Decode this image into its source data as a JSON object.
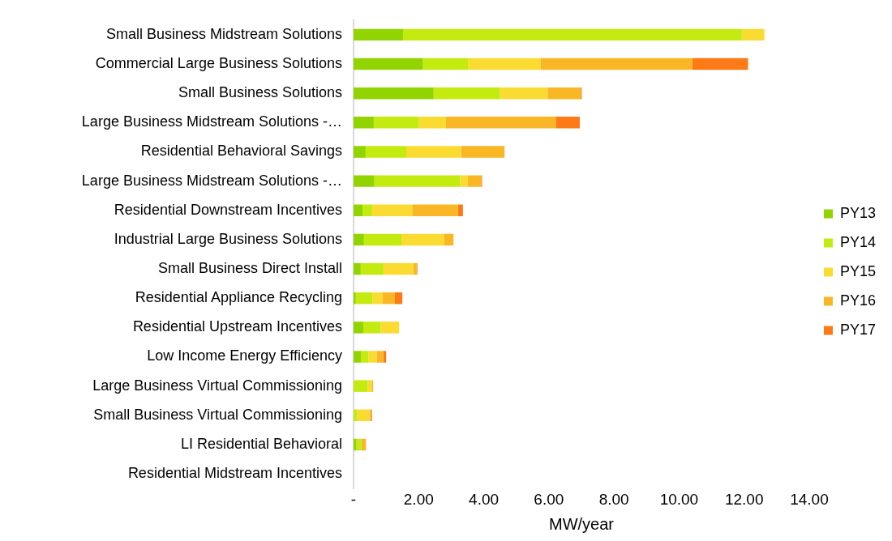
{
  "chart_data": {
    "type": "bar",
    "orientation": "horizontal",
    "stacked": true,
    "xlabel": "MW/year",
    "categories": [
      "Small Business Midstream Solutions",
      "Commercial Large Business Solutions",
      "Small Business Solutions",
      "Large Business Midstream Solutions -…",
      "Residential Behavioral Savings",
      "Large Business Midstream Solutions -…",
      "Residential Downstream Incentives",
      "Industrial Large Business Solutions",
      "Small Business Direct Install",
      "Residential Appliance Recycling",
      "Residential Upstream Incentives",
      "Low Income Energy Efficiency",
      "Large Business Virtual Commissioning",
      "Small Business Virtual Commissioning",
      "LI Residential Behavioral",
      "Residential Midstream Incentives"
    ],
    "series": [
      {
        "name": "PY13",
        "color": "#92d400",
        "values": [
          1.52,
          2.13,
          2.46,
          0.62,
          0.37,
          0.64,
          0.28,
          0.32,
          0.22,
          0.07,
          0.3,
          0.23,
          0,
          0,
          0.09,
          0
        ]
      },
      {
        "name": "PY14",
        "color": "#c4eb0f",
        "values": [
          10.41,
          1.4,
          2.04,
          1.39,
          1.25,
          2.63,
          0.29,
          1.15,
          0.7,
          0.51,
          0.53,
          0.23,
          0.43,
          0.11,
          0.15,
          0
        ]
      },
      {
        "name": "PY15",
        "color": "#fadb32",
        "values": [
          0.69,
          2.21,
          1.46,
          0.83,
          1.68,
          0.24,
          1.23,
          1.32,
          0.92,
          0.3,
          0.57,
          0.25,
          0.15,
          0.41,
          null,
          0
        ]
      },
      {
        "name": "PY16",
        "color": "#f9b726",
        "values": [
          0,
          4.66,
          1.02,
          3.37,
          1.34,
          0.41,
          1.41,
          0.28,
          0.1,
          0.39,
          0,
          0.2,
          0,
          0,
          0.14,
          0
        ]
      },
      {
        "name": "PY17",
        "color": "#fe7a17",
        "values": [
          0,
          1.72,
          0.03,
          0.74,
          0,
          0.03,
          0.15,
          0,
          0.02,
          0.23,
          0,
          0.09,
          0.02,
          0.04,
          0,
          0
        ]
      }
    ],
    "xlim": [
      0,
      14
    ],
    "xticks": [
      {
        "value": 0,
        "label": "-"
      },
      {
        "value": 2,
        "label": "2.00"
      },
      {
        "value": 4,
        "label": "4.00"
      },
      {
        "value": 6,
        "label": "6.00"
      },
      {
        "value": 8,
        "label": "8.00"
      },
      {
        "value": 10,
        "label": "10.00"
      },
      {
        "value": 12,
        "label": "12.00"
      },
      {
        "value": 14,
        "label": "14.00"
      }
    ],
    "grid": false,
    "legend": "right"
  }
}
